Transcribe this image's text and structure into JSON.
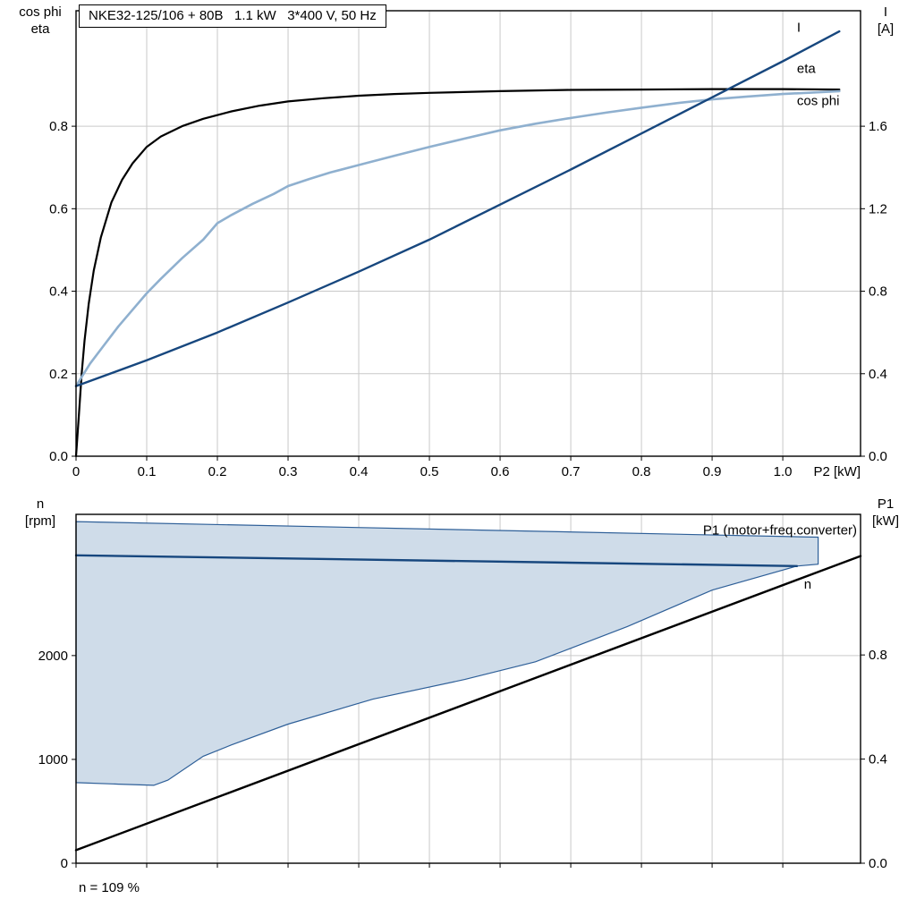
{
  "title_box": "NKE32-125/106 + 80B   1.1 kW   3*400 V, 50 Hz",
  "caption": "n = 109 %",
  "colors": {
    "grid": "#c9c9c9",
    "frame": "#000000",
    "dark_blue": "#17477e",
    "light_blue": "#8fb0cf",
    "envelope_fill": "#cfdce9",
    "envelope_stroke": "#2e5f98",
    "background": "#ffffff"
  },
  "chart_data": [
    {
      "type": "line",
      "title": "Motor curves: eta, cos phi, I vs P2",
      "x_axis": {
        "label": "P2 [kW]",
        "range": [
          0,
          1.11
        ],
        "ticks": [
          0,
          0.1,
          0.2,
          0.3,
          0.4,
          0.5,
          0.6,
          0.7,
          0.8,
          0.9,
          1.0
        ],
        "tick_labels": [
          "0",
          "0.1",
          "0.2",
          "0.3",
          "0.4",
          "0.5",
          "0.6",
          "0.7",
          "0.8",
          "0.9",
          "1.0"
        ],
        "grid": true
      },
      "left_axis": {
        "header": [
          "cos phi",
          "eta"
        ],
        "range": [
          0,
          1.08
        ],
        "ticks": [
          0,
          0.2,
          0.4,
          0.6,
          0.8
        ],
        "tick_labels": [
          "0.0",
          "0.2",
          "0.4",
          "0.6",
          "0.8"
        ]
      },
      "right_axis": {
        "header": [
          "I",
          "[A]"
        ],
        "range": [
          0,
          2.16
        ],
        "ticks": [
          0,
          0.4,
          0.8,
          1.2,
          1.6
        ],
        "tick_labels": [
          "0.0",
          "0.4",
          "0.8",
          "1.2",
          "1.6"
        ]
      },
      "series": [
        {
          "name": "eta",
          "label": "eta",
          "axis": "left",
          "type": "line",
          "color": "#000000",
          "width": 2.2,
          "label_pos": [
            1.02,
            0.94
          ],
          "label_anchor": "start",
          "points": [
            [
              0,
              0
            ],
            [
              0.004,
              0.1
            ],
            [
              0.008,
              0.2
            ],
            [
              0.012,
              0.28
            ],
            [
              0.018,
              0.37
            ],
            [
              0.025,
              0.45
            ],
            [
              0.035,
              0.53
            ],
            [
              0.05,
              0.615
            ],
            [
              0.065,
              0.67
            ],
            [
              0.08,
              0.71
            ],
            [
              0.1,
              0.75
            ],
            [
              0.12,
              0.775
            ],
            [
              0.15,
              0.8
            ],
            [
              0.18,
              0.818
            ],
            [
              0.22,
              0.836
            ],
            [
              0.26,
              0.85
            ],
            [
              0.3,
              0.86
            ],
            [
              0.35,
              0.868
            ],
            [
              0.4,
              0.874
            ],
            [
              0.45,
              0.878
            ],
            [
              0.5,
              0.881
            ],
            [
              0.6,
              0.885
            ],
            [
              0.7,
              0.888
            ],
            [
              0.8,
              0.889
            ],
            [
              0.9,
              0.89
            ],
            [
              1.0,
              0.89
            ],
            [
              1.08,
              0.889
            ]
          ]
        },
        {
          "name": "cos-phi",
          "label": "cos phi",
          "axis": "left",
          "type": "line",
          "color": "#8fb0cf",
          "width": 2.6,
          "label_pos": [
            1.02,
            0.862
          ],
          "label_anchor": "start",
          "points": [
            [
              0,
              0.17
            ],
            [
              0.02,
              0.225
            ],
            [
              0.04,
              0.27
            ],
            [
              0.06,
              0.315
            ],
            [
              0.08,
              0.355
            ],
            [
              0.1,
              0.395
            ],
            [
              0.12,
              0.43
            ],
            [
              0.15,
              0.48
            ],
            [
              0.18,
              0.525
            ],
            [
              0.2,
              0.565
            ],
            [
              0.22,
              0.585
            ],
            [
              0.25,
              0.612
            ],
            [
              0.28,
              0.636
            ],
            [
              0.3,
              0.655
            ],
            [
              0.33,
              0.672
            ],
            [
              0.36,
              0.688
            ],
            [
              0.4,
              0.706
            ],
            [
              0.45,
              0.728
            ],
            [
              0.5,
              0.75
            ],
            [
              0.55,
              0.77
            ],
            [
              0.6,
              0.79
            ],
            [
              0.65,
              0.806
            ],
            [
              0.7,
              0.82
            ],
            [
              0.75,
              0.833
            ],
            [
              0.8,
              0.845
            ],
            [
              0.85,
              0.856
            ],
            [
              0.9,
              0.865
            ],
            [
              0.95,
              0.872
            ],
            [
              1.0,
              0.878
            ],
            [
              1.08,
              0.885
            ]
          ]
        },
        {
          "name": "current",
          "label": "I",
          "axis": "right",
          "type": "line",
          "color": "#17477e",
          "width": 2.4,
          "label_pos": [
            1.02,
            2.08
          ],
          "label_anchor": "start",
          "points": [
            [
              0,
              0.34
            ],
            [
              0.1,
              0.465
            ],
            [
              0.2,
              0.6
            ],
            [
              0.3,
              0.745
            ],
            [
              0.4,
              0.895
            ],
            [
              0.5,
              1.05
            ],
            [
              0.6,
              1.22
            ],
            [
              0.7,
              1.39
            ],
            [
              0.8,
              1.565
            ],
            [
              0.9,
              1.74
            ],
            [
              1.0,
              1.915
            ],
            [
              1.08,
              2.06
            ]
          ]
        }
      ]
    },
    {
      "type": "line",
      "title": "Speed and input power vs P2",
      "x_axis": {
        "label": "",
        "range": [
          0,
          1.11
        ],
        "ticks": [
          0,
          0.1,
          0.2,
          0.3,
          0.4,
          0.5,
          0.6,
          0.7,
          0.8,
          0.9,
          1.0
        ],
        "tick_labels": [],
        "grid": true
      },
      "left_axis": {
        "header": [
          "n",
          "[rpm]"
        ],
        "range": [
          0,
          3360
        ],
        "ticks": [
          0,
          1000,
          2000
        ],
        "tick_labels": [
          "0",
          "1000",
          "2000"
        ]
      },
      "right_axis": {
        "header": [
          "P1",
          "[kW]"
        ],
        "range": [
          0,
          1.34
        ],
        "ticks": [
          0,
          0.4,
          0.8
        ],
        "tick_labels": [
          "0.0",
          "0.4",
          "0.8"
        ]
      },
      "series": [
        {
          "name": "speed-range-envelope",
          "label": "",
          "axis": "left",
          "type": "area",
          "color": "#2e5f98",
          "fill": "#cfdce9",
          "width": 1.2,
          "points": [
            [
              0,
              3290
            ],
            [
              1.05,
              3140
            ],
            [
              1.05,
              2880
            ],
            [
              1.02,
              2862
            ],
            [
              0.9,
              2630
            ],
            [
              0.78,
              2280
            ],
            [
              0.7,
              2070
            ],
            [
              0.65,
              1940
            ],
            [
              0.55,
              1770
            ],
            [
              0.42,
              1580
            ],
            [
              0.3,
              1340
            ],
            [
              0.22,
              1140
            ],
            [
              0.18,
              1030
            ],
            [
              0.13,
              800
            ],
            [
              0.11,
              750
            ],
            [
              0.06,
              762
            ],
            [
              0,
              776
            ]
          ]
        },
        {
          "name": "p1-input-power",
          "label": "P1 (motor+freq.converter)",
          "axis": "right",
          "type": "line",
          "color": "#000000",
          "width": 2.4,
          "label_pos": [
            1.105,
            1.28
          ],
          "label_anchor": "end",
          "points": [
            [
              0,
              0.05
            ],
            [
              1.11,
              1.18
            ]
          ]
        },
        {
          "name": "speed",
          "label": "n",
          "axis": "left",
          "type": "line",
          "color": "#17477e",
          "width": 2.4,
          "label_pos": [
            1.03,
            2690
          ],
          "label_anchor": "start",
          "points": [
            [
              0,
              2965
            ],
            [
              1.02,
              2862
            ]
          ]
        }
      ]
    }
  ]
}
